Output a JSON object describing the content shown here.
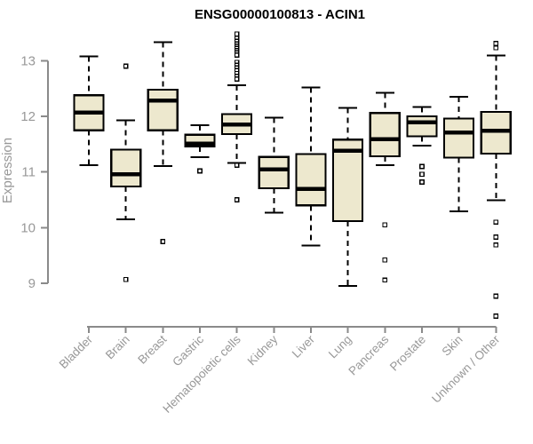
{
  "chart_data": {
    "type": "boxplot",
    "title": "ENSG00000100813 - ACIN1",
    "xlabel": "",
    "ylabel": "Expression",
    "ylim": [
      9,
      13.5
    ],
    "yticks": [
      9,
      10,
      11,
      12,
      13
    ],
    "grid": false,
    "legend": false,
    "box_fill_color": "#EDE8CE",
    "box_line_color": "#000000",
    "axis_color": "#8A8A8A",
    "tick_label_color": "#989898",
    "title_color": "#000000",
    "categories": [
      "Bladder",
      "Brain",
      "Breast",
      "Gastric",
      "Hematopoietic cells",
      "Kidney",
      "Liver",
      "Lung",
      "Pancreas",
      "Prostate",
      "Skin",
      "Unknown / Other"
    ],
    "series": [
      {
        "name": "Bladder",
        "whisker_low": 11.12,
        "q1": 11.75,
        "median": 12.07,
        "q3": 12.38,
        "whisker_high": 13.08,
        "outliers": []
      },
      {
        "name": "Brain",
        "whisker_low": 10.15,
        "q1": 10.74,
        "median": 10.96,
        "q3": 11.4,
        "whisker_high": 11.93,
        "outliers": [
          12.9,
          9.07
        ]
      },
      {
        "name": "Breast",
        "whisker_low": 11.11,
        "q1": 11.75,
        "median": 12.28,
        "q3": 12.48,
        "whisker_high": 13.33,
        "outliers": [
          9.75
        ]
      },
      {
        "name": "Gastric",
        "whisker_low": 11.27,
        "q1": 11.46,
        "median": 11.51,
        "q3": 11.67,
        "whisker_high": 11.84,
        "outliers": [
          11.02
        ]
      },
      {
        "name": "Hematopoietic cells",
        "whisker_low": 11.16,
        "q1": 11.68,
        "median": 11.85,
        "q3": 12.04,
        "whisker_high": 12.56,
        "outliers": [
          13.48,
          13.4,
          13.35,
          13.3,
          13.26,
          13.22,
          13.18,
          13.14,
          13.1,
          12.97,
          12.92,
          12.87,
          12.82,
          12.77,
          12.72,
          12.67,
          11.12,
          10.5
        ]
      },
      {
        "name": "Kidney",
        "whisker_low": 10.27,
        "q1": 10.71,
        "median": 11.05,
        "q3": 11.27,
        "whisker_high": 11.98,
        "outliers": []
      },
      {
        "name": "Liver",
        "whisker_low": 9.68,
        "q1": 10.4,
        "median": 10.7,
        "q3": 11.32,
        "whisker_high": 12.52,
        "outliers": []
      },
      {
        "name": "Lung",
        "whisker_low": 8.95,
        "q1": 10.12,
        "median": 11.38,
        "q3": 11.58,
        "whisker_high": 12.15,
        "outliers": []
      },
      {
        "name": "Pancreas",
        "whisker_low": 11.12,
        "q1": 11.28,
        "median": 11.59,
        "q3": 12.06,
        "whisker_high": 12.42,
        "outliers": [
          10.05,
          9.42,
          9.06
        ]
      },
      {
        "name": "Prostate",
        "whisker_low": 11.47,
        "q1": 11.64,
        "median": 11.89,
        "q3": 12.0,
        "whisker_high": 12.17,
        "outliers": [
          11.1,
          10.96,
          10.82
        ]
      },
      {
        "name": "Skin",
        "whisker_low": 10.29,
        "q1": 11.26,
        "median": 11.71,
        "q3": 11.96,
        "whisker_high": 12.35,
        "outliers": []
      },
      {
        "name": "Unknown / Other",
        "whisker_low": 10.49,
        "q1": 11.33,
        "median": 11.74,
        "q3": 12.08,
        "whisker_high": 13.09,
        "outliers": [
          13.31,
          13.23,
          10.1,
          9.83,
          9.69,
          8.77,
          8.41
        ]
      }
    ]
  }
}
